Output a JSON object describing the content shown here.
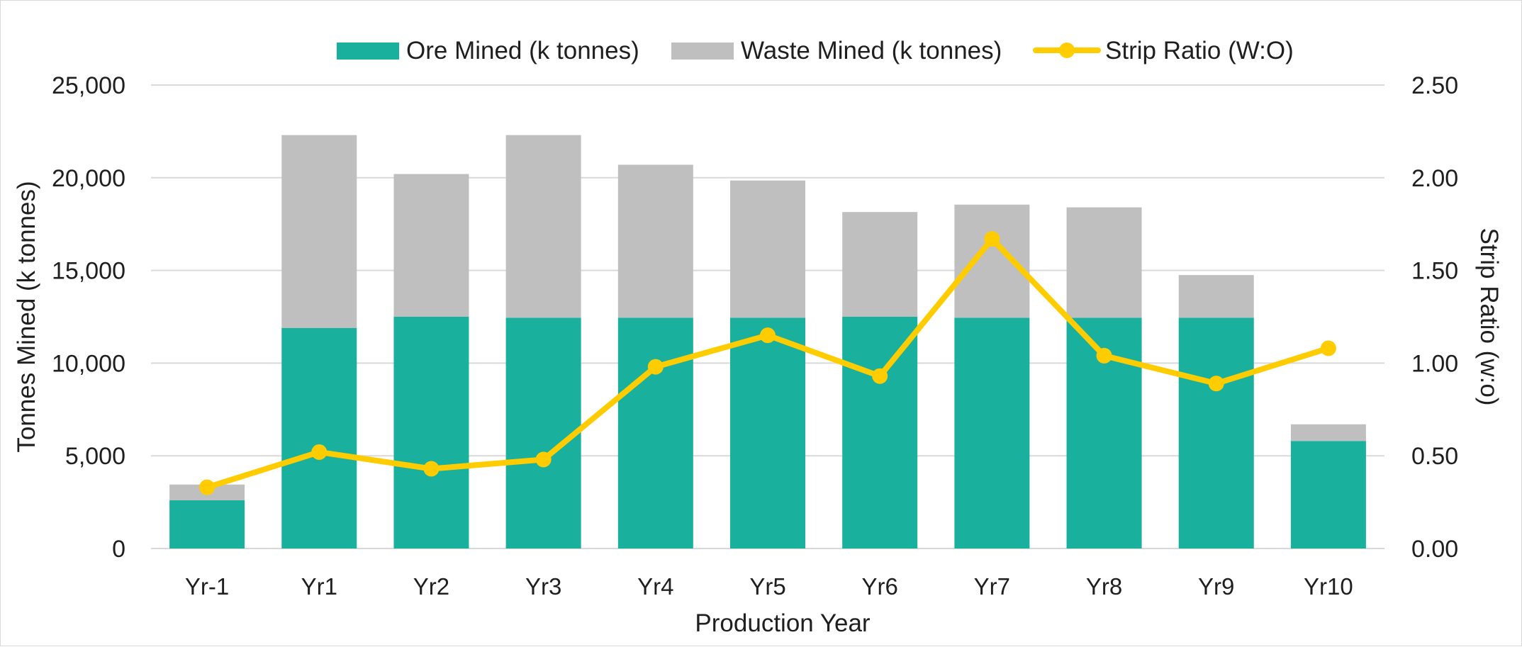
{
  "chart_data": {
    "type": "bar",
    "stacked": true,
    "title": "",
    "xlabel": "Production Year",
    "ylabel": "Tonnes Mined (k tonnes)",
    "y2label": "Strip Ratio (w:o)",
    "ylim": [
      0,
      25000
    ],
    "y2lim": [
      0,
      2.5
    ],
    "y_ticks": [
      "0",
      "5,000",
      "10,000",
      "15,000",
      "20,000",
      "25,000"
    ],
    "y2_ticks": [
      "0.00",
      "0.50",
      "1.00",
      "1.50",
      "2.00",
      "2.50"
    ],
    "grid": true,
    "legend_position": "top",
    "categories": [
      "Yr-1",
      "Yr1",
      "Yr2",
      "Yr3",
      "Yr4",
      "Yr5",
      "Yr6",
      "Yr7",
      "Yr8",
      "Yr9",
      "Yr10"
    ],
    "series": [
      {
        "name": "Ore Mined (k tonnes)",
        "type": "bar",
        "axis": "left",
        "color": "#1ab09e",
        "values": [
          2600,
          11900,
          12500,
          12450,
          12450,
          12450,
          12500,
          12450,
          12450,
          12450,
          5800
        ]
      },
      {
        "name": "Waste Mined (k tonnes)",
        "type": "bar",
        "axis": "left",
        "color": "#bfbfbf",
        "values": [
          850,
          10400,
          7700,
          9850,
          8250,
          7400,
          5650,
          6100,
          5950,
          2300,
          900
        ]
      },
      {
        "name": "Strip Ratio (W:O)",
        "type": "line",
        "axis": "right",
        "color": "#ffcc00",
        "values": [
          0.33,
          0.52,
          0.43,
          0.48,
          0.98,
          1.15,
          0.93,
          1.67,
          1.04,
          0.89,
          1.08
        ]
      }
    ]
  }
}
